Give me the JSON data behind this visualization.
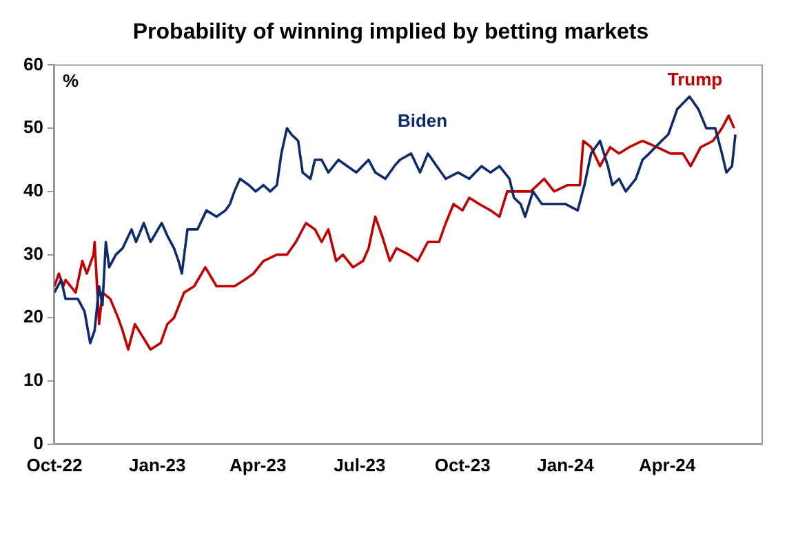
{
  "chart_data": {
    "type": "line",
    "title": "Probability of winning implied by betting markets",
    "ylabel": "%",
    "xlim": [
      "2022-10-01",
      "2024-06-25"
    ],
    "xticks": [
      {
        "value": "2022-10-01",
        "label": "Oct-22"
      },
      {
        "value": "2023-01-01",
        "label": "Jan-23"
      },
      {
        "value": "2023-04-01",
        "label": "Apr-23"
      },
      {
        "value": "2023-07-01",
        "label": "Jul-23"
      },
      {
        "value": "2023-10-01",
        "label": "Oct-23"
      },
      {
        "value": "2024-01-01",
        "label": "Jan-24"
      },
      {
        "value": "2024-04-01",
        "label": "Apr-24"
      }
    ],
    "ylim": [
      0,
      60
    ],
    "yticks": [
      0,
      10,
      20,
      30,
      40,
      50,
      60
    ],
    "grid": false,
    "legend": false,
    "marker": "none",
    "line_style": "solid",
    "series": [
      {
        "name": "Biden",
        "color": "#0d2a6b",
        "x": [
          "2022-10-01",
          "2022-10-07",
          "2022-10-11",
          "2022-10-22",
          "2022-10-28",
          "2022-11-02",
          "2022-11-06",
          "2022-11-10",
          "2022-11-13",
          "2022-11-16",
          "2022-11-19",
          "2022-11-25",
          "2022-12-01",
          "2022-12-09",
          "2022-12-13",
          "2022-12-20",
          "2022-12-26",
          "2023-01-05",
          "2023-01-10",
          "2023-01-16",
          "2023-01-20",
          "2023-01-23",
          "2023-01-28",
          "2023-02-06",
          "2023-02-14",
          "2023-02-23",
          "2023-03-03",
          "2023-03-07",
          "2023-03-11",
          "2023-03-16",
          "2023-03-24",
          "2023-03-30",
          "2023-04-06",
          "2023-04-12",
          "2023-04-18",
          "2023-04-22",
          "2023-04-27",
          "2023-05-01",
          "2023-05-07",
          "2023-05-11",
          "2023-05-18",
          "2023-05-22",
          "2023-05-28",
          "2023-06-03",
          "2023-06-12",
          "2023-06-20",
          "2023-06-28",
          "2023-07-09",
          "2023-07-15",
          "2023-07-24",
          "2023-08-01",
          "2023-08-06",
          "2023-08-16",
          "2023-08-24",
          "2023-08-31",
          "2023-09-08",
          "2023-09-16",
          "2023-09-27",
          "2023-10-07",
          "2023-10-18",
          "2023-10-26",
          "2023-11-03",
          "2023-11-12",
          "2023-11-16",
          "2023-11-22",
          "2023-11-26",
          "2023-12-03",
          "2023-12-11",
          "2023-12-24",
          "2024-01-01",
          "2024-01-12",
          "2024-01-18",
          "2024-01-24",
          "2024-02-01",
          "2024-02-08",
          "2024-02-12",
          "2024-02-18",
          "2024-02-24",
          "2024-03-04",
          "2024-03-10",
          "2024-03-16",
          "2024-03-27",
          "2024-04-02",
          "2024-04-10",
          "2024-04-21",
          "2024-04-29",
          "2024-05-06",
          "2024-05-14",
          "2024-05-20",
          "2024-05-24",
          "2024-05-29",
          "2024-06-01"
        ],
        "values": [
          24,
          26,
          23,
          23,
          21,
          16,
          18,
          25,
          22,
          32,
          28,
          30,
          31,
          34,
          32,
          35,
          32,
          35,
          33,
          31,
          29,
          27,
          34,
          34,
          37,
          36,
          37,
          38,
          40,
          42,
          41,
          40,
          41,
          40,
          41,
          46,
          50,
          49,
          48,
          43,
          42,
          45,
          45,
          43,
          45,
          44,
          43,
          45,
          43,
          42,
          44,
          45,
          46,
          43,
          46,
          44,
          42,
          43,
          42,
          44,
          43,
          44,
          42,
          39,
          38,
          36,
          40,
          38,
          38,
          38,
          37,
          41,
          46,
          48,
          44,
          41,
          42,
          40,
          42,
          45,
          46,
          48,
          49,
          53,
          55,
          53,
          50,
          50,
          46,
          43,
          44,
          49
        ]
      },
      {
        "name": "Trump",
        "color": "#c00000",
        "x": [
          "2022-10-01",
          "2022-10-05",
          "2022-10-09",
          "2022-10-11",
          "2022-10-20",
          "2022-10-26",
          "2022-10-30",
          "2022-11-05",
          "2022-11-06",
          "2022-11-10",
          "2022-11-13",
          "2022-11-20",
          "2022-11-27",
          "2022-12-01",
          "2022-12-06",
          "2022-12-12",
          "2022-12-19",
          "2022-12-26",
          "2023-01-04",
          "2023-01-10",
          "2023-01-16",
          "2023-01-25",
          "2023-02-03",
          "2023-02-13",
          "2023-02-23",
          "2023-03-03",
          "2023-03-11",
          "2023-03-20",
          "2023-03-28",
          "2023-04-06",
          "2023-04-18",
          "2023-04-27",
          "2023-05-05",
          "2023-05-14",
          "2023-05-22",
          "2023-05-28",
          "2023-06-03",
          "2023-06-10",
          "2023-06-16",
          "2023-06-25",
          "2023-07-04",
          "2023-07-09",
          "2023-07-15",
          "2023-07-21",
          "2023-07-28",
          "2023-08-03",
          "2023-08-14",
          "2023-08-22",
          "2023-08-31",
          "2023-09-10",
          "2023-09-16",
          "2023-09-23",
          "2023-10-01",
          "2023-10-07",
          "2023-10-16",
          "2023-10-26",
          "2023-11-03",
          "2023-11-10",
          "2023-11-18",
          "2023-12-01",
          "2023-12-13",
          "2023-12-22",
          "2024-01-03",
          "2024-01-14",
          "2024-01-17",
          "2024-01-24",
          "2024-02-01",
          "2024-02-10",
          "2024-02-18",
          "2024-02-27",
          "2024-03-10",
          "2024-03-23",
          "2024-04-04",
          "2024-04-15",
          "2024-04-22",
          "2024-05-01",
          "2024-05-12",
          "2024-05-20",
          "2024-05-26",
          "2024-05-31"
        ],
        "values": [
          25,
          27,
          25,
          26,
          24,
          29,
          27,
          30,
          32,
          19,
          24,
          23,
          20,
          18,
          15,
          19,
          17,
          15,
          16,
          19,
          20,
          24,
          25,
          28,
          25,
          25,
          25,
          26,
          27,
          29,
          30,
          30,
          32,
          35,
          34,
          32,
          34,
          29,
          30,
          28,
          29,
          31,
          36,
          33,
          29,
          31,
          30,
          29,
          32,
          32,
          35,
          38,
          37,
          39,
          38,
          37,
          36,
          40,
          40,
          40,
          42,
          40,
          41,
          41,
          48,
          47,
          44,
          47,
          46,
          47,
          48,
          47,
          46,
          46,
          44,
          47,
          48,
          50,
          52,
          50
        ]
      }
    ]
  }
}
